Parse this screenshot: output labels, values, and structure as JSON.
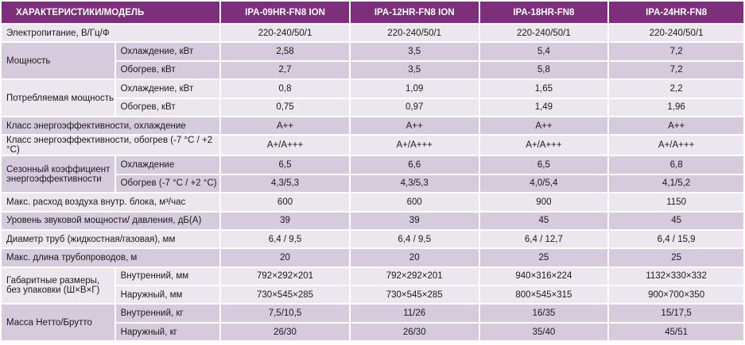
{
  "header": {
    "title": "ХАРАКТЕРИСТИКИ/МОДЕЛЬ",
    "models": [
      "IPA-09HR-FN8 ION",
      "IPA-12HR-FN8 ION",
      "IPA-18HR-FN8",
      "IPA-24HR-FN8"
    ]
  },
  "rows": [
    {
      "label": "Электропитание, В/Гц/Ф",
      "values": [
        "220-240/50/1",
        "220-240/50/1",
        "220-240/50/1",
        "220-240/50/1"
      ]
    },
    {
      "label": "Мощность",
      "sub": "Охлаждение, кВт",
      "values": [
        "2,58",
        "3,5",
        "5,4",
        "7,2"
      ]
    },
    {
      "sub": "Обогрев, кВт",
      "values": [
        "2,7",
        "3,5",
        "5,8",
        "7,2"
      ]
    },
    {
      "label": "Потребляемая мощность",
      "sub": "Охлаждение, кВт",
      "values": [
        "0,8",
        "1,09",
        "1,65",
        "2,2"
      ]
    },
    {
      "sub": "Обогрев, кВт",
      "values": [
        "0,75",
        "0,97",
        "1,49",
        "1,96"
      ]
    },
    {
      "label": "Класс энергоэффективности, охлаждение",
      "values": [
        "A++",
        "A++",
        "A++",
        "A++"
      ]
    },
    {
      "label": "Класс энергоэффективности, обогрев (-7 °С / +2 °С)",
      "values": [
        "A+/A+++",
        "A+/A+++",
        "A+/A+++",
        "A+/A+++"
      ]
    },
    {
      "label": "Сезонный коэффициент энергоэффективности",
      "sub": "Охлаждение",
      "values": [
        "6,5",
        "6,6",
        "6,5",
        "6,8"
      ]
    },
    {
      "sub": "Обогрев (-7 °С / +2 °С)",
      "values": [
        "4,3/5,3",
        "4,3/5,3",
        "4,0/5,4",
        "4,1/5,2"
      ]
    },
    {
      "label": "Макс. расход воздуха внутр. блока, м³/час",
      "values": [
        "600",
        "600",
        "900",
        "1150"
      ]
    },
    {
      "label": "Уровень звуковой мощности/ давления, дБ(А)",
      "values": [
        "39",
        "39",
        "45",
        "45"
      ]
    },
    {
      "label": "Диаметр труб (жидкостная/газовая), мм",
      "values": [
        "6,4 / 9,5",
        "6,4 / 9,5",
        "6,4 / 12,7",
        "6,4 / 15,9"
      ]
    },
    {
      "label": "Макс. длина трубопроводов, м",
      "values": [
        "20",
        "20",
        "25",
        "25"
      ]
    },
    {
      "label": "Габаритные размеры, без упаковки (Ш×В×Г)",
      "sub": "Внутренний, мм",
      "values": [
        "792×292×201",
        "792×292×201",
        "940×316×224",
        "1132×330×332"
      ]
    },
    {
      "sub": "Наружный, мм",
      "values": [
        "730×545×285",
        "730×545×285",
        "800×545×315",
        "900×700×350"
      ]
    },
    {
      "label": "Масса Нетто/Брутто",
      "sub": "Внутренний, кг",
      "values": [
        "7,5/10,5",
        "11/26",
        "16/35",
        "15/17,5"
      ]
    },
    {
      "sub": "Наружный, кг",
      "values": [
        "26/30",
        "26/30",
        "35/40",
        "45/51"
      ]
    }
  ],
  "colors": {
    "header_bg": "#7d2f7c",
    "row_light": "#ece6ef",
    "row_dark": "#d6cadd"
  }
}
